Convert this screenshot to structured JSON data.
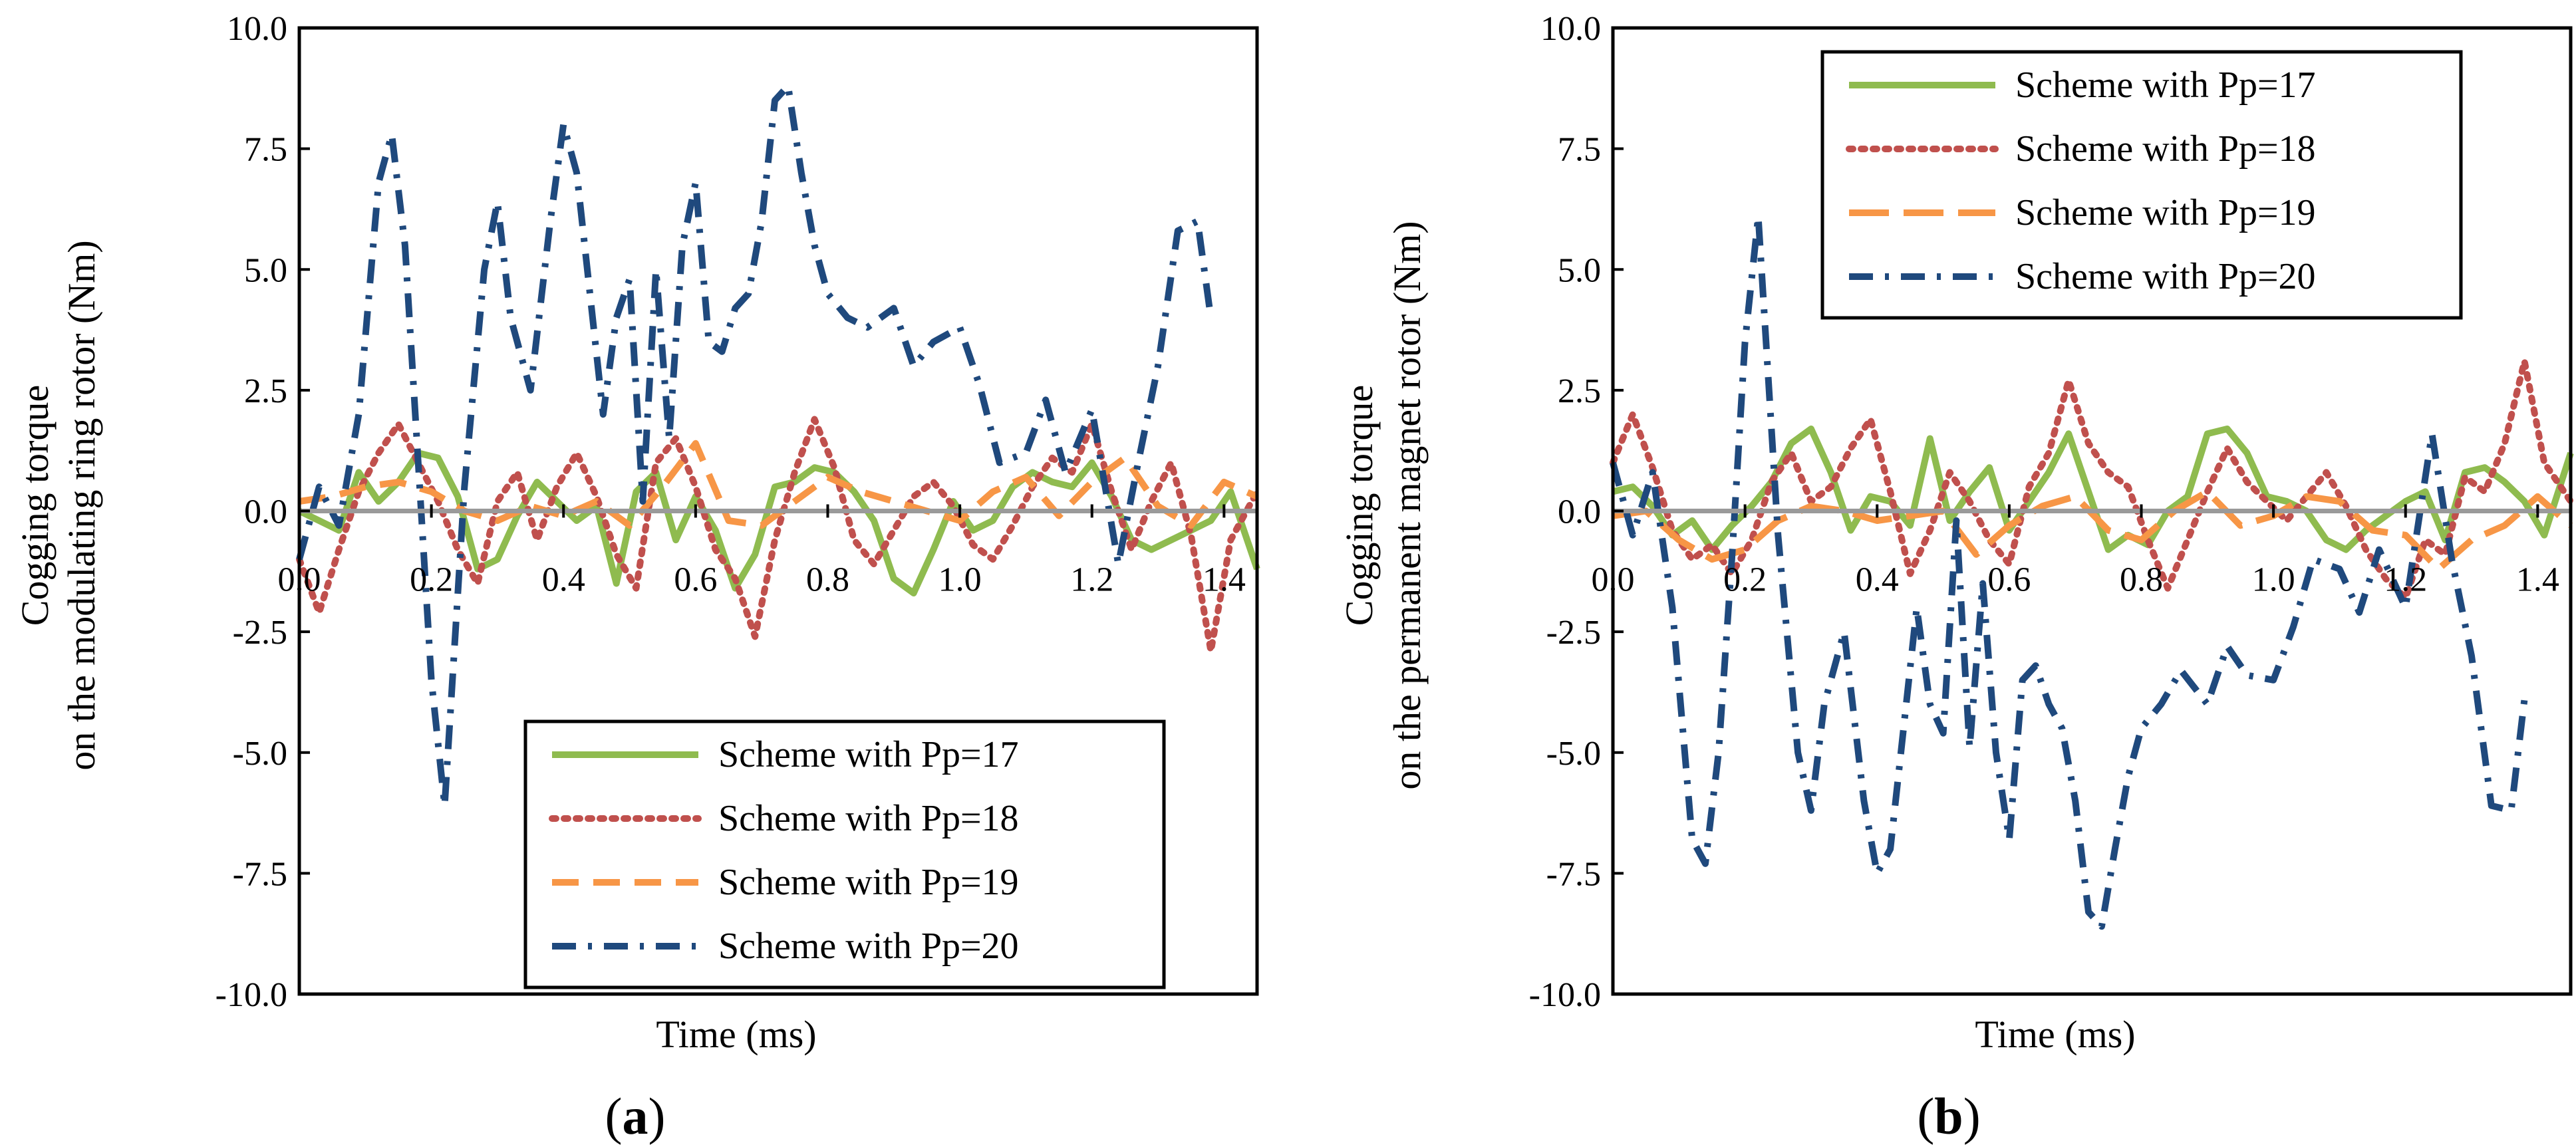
{
  "chart_data": [
    {
      "type": "line",
      "panel_label": "a",
      "title": "",
      "xlabel": "Time (ms)",
      "ylabel": "Cogging torque on the modulating ring rotor (Nm)",
      "ylabel_lines": [
        "Cogging  torque",
        "on the modulating ring rotor (Nm)"
      ],
      "xlim": [
        0.0,
        1.45
      ],
      "ylim": [
        -10.0,
        10.0
      ],
      "x_ticks": [
        "0.0",
        "0.2",
        "0.4",
        "0.6",
        "0.8",
        "1.0",
        "1.2",
        "1.4"
      ],
      "y_ticks": [
        "10.0",
        "7.5",
        "5.0",
        "2.5",
        "0.0",
        "-2.5",
        "-5.0",
        "-7.5",
        "-10.0"
      ],
      "legend_position": "bottom-right",
      "series": [
        {
          "name": "Scheme with Pp=17",
          "color": "#8fbb4f",
          "style": "solid",
          "x": [
            0,
            0.03,
            0.06,
            0.09,
            0.12,
            0.15,
            0.18,
            0.21,
            0.24,
            0.27,
            0.3,
            0.33,
            0.36,
            0.39,
            0.42,
            0.45,
            0.48,
            0.51,
            0.54,
            0.57,
            0.6,
            0.63,
            0.66,
            0.69,
            0.72,
            0.75,
            0.78,
            0.81,
            0.84,
            0.87,
            0.9,
            0.93,
            0.96,
            0.99,
            1.02,
            1.05,
            1.08,
            1.11,
            1.14,
            1.17,
            1.2,
            1.23,
            1.26,
            1.29,
            1.32,
            1.35,
            1.38,
            1.41,
            1.45
          ],
          "y": [
            0,
            -0.2,
            -0.4,
            0.8,
            0.2,
            0.6,
            1.2,
            1.1,
            0.3,
            -1.2,
            -1.0,
            -0.1,
            0.6,
            0.2,
            -0.2,
            0.1,
            -1.5,
            0.4,
            0.8,
            -0.6,
            0.3,
            -0.4,
            -1.6,
            -0.9,
            0.5,
            0.6,
            0.9,
            0.8,
            0.4,
            -0.2,
            -1.4,
            -1.7,
            -0.8,
            0.2,
            -0.4,
            -0.2,
            0.5,
            0.8,
            0.6,
            0.5,
            1.0,
            0.3,
            -0.6,
            -0.8,
            -0.6,
            -0.4,
            -0.2,
            0.4,
            -1.2
          ]
        },
        {
          "name": "Scheme with Pp=18",
          "color": "#c0504d",
          "style": "dotted",
          "x": [
            0,
            0.03,
            0.06,
            0.09,
            0.12,
            0.15,
            0.18,
            0.21,
            0.24,
            0.27,
            0.3,
            0.33,
            0.36,
            0.39,
            0.42,
            0.45,
            0.48,
            0.51,
            0.54,
            0.57,
            0.6,
            0.63,
            0.66,
            0.69,
            0.72,
            0.75,
            0.78,
            0.81,
            0.84,
            0.87,
            0.9,
            0.93,
            0.96,
            0.99,
            1.02,
            1.05,
            1.08,
            1.11,
            1.14,
            1.17,
            1.2,
            1.23,
            1.26,
            1.29,
            1.32,
            1.35,
            1.38,
            1.41,
            1.45
          ],
          "y": [
            -1.0,
            -2.1,
            -0.8,
            0.4,
            1.2,
            1.8,
            1.0,
            0.2,
            -0.8,
            -1.5,
            0.2,
            0.8,
            -0.6,
            0.5,
            1.2,
            0.3,
            -0.9,
            -1.6,
            1.0,
            1.5,
            0.5,
            -0.8,
            -1.4,
            -2.6,
            -0.6,
            0.8,
            1.9,
            0.9,
            -0.6,
            -1.1,
            -0.4,
            0.3,
            0.6,
            0.1,
            -0.7,
            -1.0,
            -0.3,
            0.5,
            1.1,
            0.8,
            1.8,
            0.4,
            -0.8,
            0.2,
            1.0,
            -0.5,
            -2.9,
            -0.6,
            0.4
          ]
        },
        {
          "name": "Scheme with Pp=19",
          "color": "#f79646",
          "style": "dashed",
          "x": [
            0,
            0.05,
            0.1,
            0.15,
            0.2,
            0.25,
            0.3,
            0.35,
            0.4,
            0.45,
            0.5,
            0.55,
            0.6,
            0.65,
            0.7,
            0.75,
            0.8,
            0.85,
            0.9,
            0.95,
            1.0,
            1.05,
            1.1,
            1.15,
            1.2,
            1.25,
            1.3,
            1.35,
            1.4,
            1.45
          ],
          "y": [
            0.2,
            0.3,
            0.5,
            0.6,
            0.4,
            0.0,
            -0.2,
            0.1,
            -0.1,
            0.2,
            -0.3,
            0.5,
            1.4,
            -0.2,
            -0.3,
            0.2,
            0.7,
            0.4,
            0.2,
            0.0,
            -0.2,
            0.4,
            0.7,
            -0.1,
            0.6,
            1.1,
            0.1,
            -0.3,
            0.6,
            0.3
          ]
        },
        {
          "name": "Scheme with Pp=20",
          "color": "#1f497d",
          "style": "dashdot",
          "x": [
            0,
            0.03,
            0.06,
            0.09,
            0.12,
            0.14,
            0.16,
            0.18,
            0.2,
            0.22,
            0.25,
            0.28,
            0.3,
            0.32,
            0.35,
            0.38,
            0.4,
            0.42,
            0.44,
            0.46,
            0.48,
            0.5,
            0.52,
            0.54,
            0.56,
            0.58,
            0.6,
            0.62,
            0.64,
            0.66,
            0.68,
            0.7,
            0.72,
            0.74,
            0.76,
            0.78,
            0.8,
            0.83,
            0.86,
            0.9,
            0.93,
            0.96,
            1.0,
            1.03,
            1.06,
            1.1,
            1.13,
            1.16,
            1.2,
            1.24,
            1.27,
            1.3,
            1.33,
            1.36,
            1.38
          ],
          "y": [
            -1.0,
            0.5,
            -0.3,
            2.0,
            6.8,
            7.8,
            5.5,
            1.0,
            -3.5,
            -6.1,
            0.5,
            5.0,
            6.4,
            4.0,
            2.5,
            6.0,
            8.0,
            7.0,
            4.5,
            2.0,
            4.0,
            4.8,
            0.2,
            5.0,
            1.5,
            5.5,
            6.8,
            3.5,
            3.3,
            4.2,
            4.5,
            6.0,
            8.5,
            8.8,
            7.0,
            5.5,
            4.5,
            4.0,
            3.8,
            4.2,
            3.0,
            3.5,
            3.8,
            2.6,
            1.0,
            1.2,
            2.3,
            0.8,
            2.1,
            -1.1,
            1.0,
            3.0,
            5.8,
            6.0,
            4.0
          ]
        }
      ]
    },
    {
      "type": "line",
      "panel_label": "b",
      "title": "",
      "xlabel": "Time (ms)",
      "ylabel": "Cogging torque on the permanent magnet rotor (Nm)",
      "ylabel_lines": [
        "Cogging  torque",
        "on the permanent magnet  rotor (Nm)"
      ],
      "xlim": [
        0.0,
        1.45
      ],
      "ylim": [
        -10.0,
        10.0
      ],
      "x_ticks": [
        "0.0",
        "0.2",
        "0.4",
        "0.6",
        "0.8",
        "1.0",
        "1.2",
        "1.4"
      ],
      "y_ticks": [
        "10.0",
        "7.5",
        "5.0",
        "2.5",
        "0.0",
        "-2.5",
        "-5.0",
        "-7.5",
        "-10.0"
      ],
      "legend_position": "top-right",
      "series": [
        {
          "name": "Scheme with Pp=17",
          "color": "#8fbb4f",
          "style": "solid",
          "x": [
            0,
            0.03,
            0.06,
            0.09,
            0.12,
            0.15,
            0.18,
            0.21,
            0.24,
            0.27,
            0.3,
            0.33,
            0.36,
            0.39,
            0.42,
            0.45,
            0.48,
            0.51,
            0.54,
            0.57,
            0.6,
            0.63,
            0.66,
            0.69,
            0.72,
            0.75,
            0.78,
            0.81,
            0.84,
            0.87,
            0.9,
            0.93,
            0.96,
            0.99,
            1.02,
            1.05,
            1.08,
            1.11,
            1.14,
            1.17,
            1.2,
            1.23,
            1.26,
            1.29,
            1.32,
            1.35,
            1.38,
            1.41,
            1.45
          ],
          "y": [
            0.4,
            0.5,
            0.1,
            -0.5,
            -0.2,
            -0.8,
            -0.3,
            0.1,
            0.6,
            1.4,
            1.7,
            0.8,
            -0.4,
            0.3,
            0.2,
            -0.3,
            1.5,
            -0.2,
            0.4,
            0.9,
            -0.4,
            0.2,
            0.8,
            1.6,
            0.4,
            -0.8,
            -0.5,
            -0.7,
            0.0,
            0.3,
            1.6,
            1.7,
            1.2,
            0.3,
            0.2,
            0.0,
            -0.6,
            -0.8,
            -0.4,
            -0.1,
            0.2,
            0.4,
            -0.6,
            0.8,
            0.9,
            0.6,
            0.2,
            -0.5,
            1.2
          ]
        },
        {
          "name": "Scheme with Pp=18",
          "color": "#c0504d",
          "style": "dotted",
          "x": [
            0,
            0.03,
            0.06,
            0.09,
            0.12,
            0.15,
            0.18,
            0.21,
            0.24,
            0.27,
            0.3,
            0.33,
            0.36,
            0.39,
            0.42,
            0.45,
            0.48,
            0.51,
            0.54,
            0.57,
            0.6,
            0.63,
            0.66,
            0.69,
            0.72,
            0.75,
            0.78,
            0.81,
            0.84,
            0.87,
            0.9,
            0.93,
            0.96,
            0.99,
            1.02,
            1.05,
            1.08,
            1.11,
            1.14,
            1.17,
            1.2,
            1.23,
            1.26,
            1.29,
            1.32,
            1.35,
            1.38,
            1.41,
            1.45
          ],
          "y": [
            1.0,
            2.0,
            0.9,
            -0.4,
            -1.0,
            -0.7,
            -1.3,
            -0.6,
            0.6,
            1.2,
            0.2,
            0.5,
            1.3,
            1.9,
            0.4,
            -1.3,
            -0.4,
            0.8,
            0.2,
            -0.6,
            -1.1,
            0.5,
            1.2,
            2.7,
            1.4,
            0.8,
            0.5,
            -0.6,
            -1.6,
            -0.6,
            0.4,
            1.3,
            0.6,
            0.2,
            -0.2,
            0.3,
            0.8,
            0.1,
            -0.8,
            -1.4,
            -1.8,
            -0.6,
            -0.9,
            0.7,
            0.4,
            1.4,
            3.1,
            1.0,
            0.2
          ]
        },
        {
          "name": "Scheme with Pp=19",
          "color": "#f79646",
          "style": "longdash",
          "x": [
            0,
            0.05,
            0.1,
            0.15,
            0.2,
            0.25,
            0.3,
            0.35,
            0.4,
            0.45,
            0.5,
            0.55,
            0.6,
            0.65,
            0.7,
            0.75,
            0.8,
            0.85,
            0.9,
            0.95,
            1.0,
            1.05,
            1.1,
            1.15,
            1.2,
            1.25,
            1.3,
            1.35,
            1.4,
            1.45
          ],
          "y": [
            -0.1,
            0.0,
            -0.6,
            -1.0,
            -0.8,
            -0.2,
            0.1,
            0.0,
            -0.2,
            -0.1,
            0.0,
            -0.9,
            -0.3,
            0.1,
            0.3,
            -0.4,
            -0.6,
            0.0,
            0.4,
            -0.3,
            -0.1,
            0.3,
            0.2,
            -0.4,
            -0.5,
            -1.2,
            -0.6,
            -0.3,
            0.3,
            -0.3
          ]
        },
        {
          "name": "Scheme with Pp=20",
          "color": "#1f497d",
          "style": "dashdot",
          "x": [
            0,
            0.03,
            0.06,
            0.09,
            0.12,
            0.14,
            0.16,
            0.18,
            0.2,
            0.22,
            0.25,
            0.28,
            0.3,
            0.32,
            0.35,
            0.38,
            0.4,
            0.42,
            0.44,
            0.46,
            0.48,
            0.5,
            0.52,
            0.54,
            0.56,
            0.58,
            0.6,
            0.62,
            0.64,
            0.66,
            0.68,
            0.7,
            0.72,
            0.74,
            0.76,
            0.78,
            0.8,
            0.83,
            0.86,
            0.9,
            0.93,
            0.96,
            1.0,
            1.03,
            1.06,
            1.1,
            1.13,
            1.16,
            1.2,
            1.24,
            1.27,
            1.3,
            1.33,
            1.36,
            1.38
          ],
          "y": [
            1.0,
            -0.5,
            0.8,
            -2.0,
            -6.8,
            -7.3,
            -5.0,
            -1.0,
            3.5,
            6.1,
            -0.5,
            -5.0,
            -6.2,
            -4.0,
            -2.5,
            -6.0,
            -7.5,
            -7.0,
            -4.5,
            -2.0,
            -4.0,
            -4.6,
            -0.2,
            -4.9,
            -1.5,
            -5.0,
            -6.8,
            -3.5,
            -3.2,
            -4.0,
            -4.5,
            -6.0,
            -8.3,
            -8.6,
            -7.0,
            -5.5,
            -4.5,
            -4.0,
            -3.3,
            -4.0,
            -2.8,
            -3.4,
            -3.5,
            -2.4,
            -1.0,
            -1.2,
            -2.1,
            -0.8,
            -2.0,
            1.6,
            -1.0,
            -3.0,
            -6.1,
            -6.2,
            -3.9
          ]
        }
      ]
    }
  ]
}
